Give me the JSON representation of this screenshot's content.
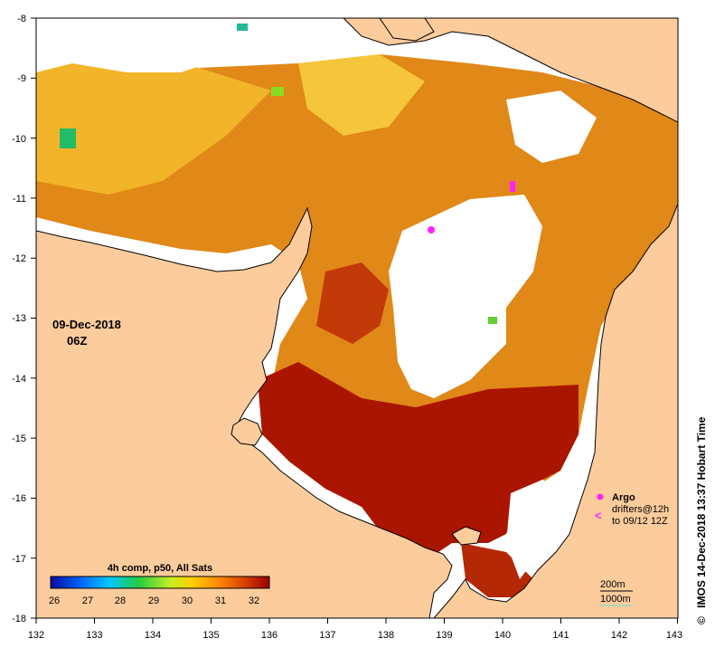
{
  "map": {
    "longitude_ticks": [
      "132",
      "133",
      "134",
      "135",
      "136",
      "137",
      "138",
      "139",
      "140",
      "141",
      "142",
      "143"
    ],
    "latitude_ticks": [
      "-8",
      "-9",
      "-10",
      "-11",
      "-12",
      "-13",
      "-14",
      "-15",
      "-16",
      "-17",
      "-18"
    ],
    "date": "09-Dec-2018",
    "time": "06Z"
  },
  "colorbar": {
    "title": "4h comp, p50, All Sats",
    "ticks": [
      "26",
      "27",
      "28",
      "29",
      "30",
      "31",
      "32"
    ],
    "colors": [
      "#0a0a9e",
      "#0066ff",
      "#00c8ff",
      "#22cc44",
      "#c8ee22",
      "#ffcc00",
      "#ff8800",
      "#dd4400",
      "#990000"
    ]
  },
  "legend": {
    "argo_label": "Argo",
    "drifters_label": "drifters@12h",
    "drifters_period": "to 09/12 12Z",
    "contour_200": "200m",
    "contour_1000": "1000m"
  },
  "credit": "IMOS 14-Dec-2018 13:37 Hobart Time",
  "copyright_symbol": "©",
  "colors": {
    "land": "#fdcc9c",
    "warm": "#e08818",
    "hot": "#aa1500",
    "argo": "#ff22ff"
  }
}
